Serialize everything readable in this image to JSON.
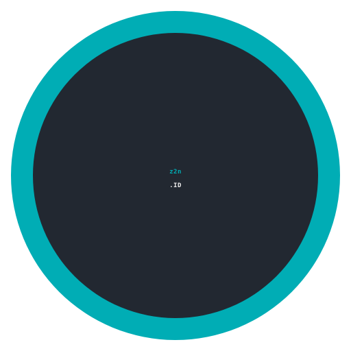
{
  "logo": {
    "primary_text": "z2n",
    "secondary_text": ".ID"
  },
  "colors": {
    "ring": "#00adb5",
    "disc": "#222831",
    "primary_text": "#00adb5",
    "secondary_text": "#eeeeee",
    "background": "#ffffff"
  }
}
